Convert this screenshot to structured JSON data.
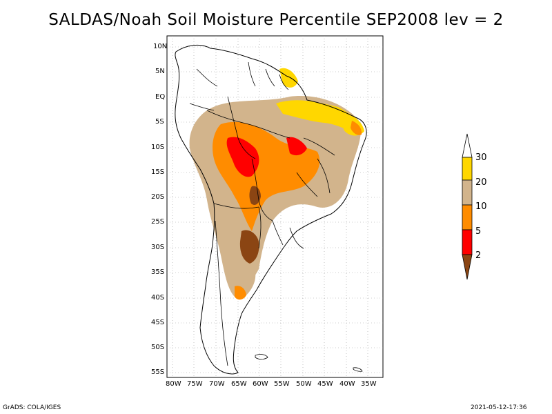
{
  "title": "SALDAS/Noah Soil Moisture Percentile SEP2008 lev = 2",
  "lat_labels": [
    "10N",
    "5N",
    "EQ",
    "5S",
    "10S",
    "15S",
    "20S",
    "25S",
    "30S",
    "35S",
    "40S",
    "45S",
    "50S",
    "55S"
  ],
  "lon_labels": [
    "80W",
    "75W",
    "70W",
    "65W",
    "60W",
    "55W",
    "50W",
    "45W",
    "40W",
    "35W"
  ],
  "colorbar": {
    "labels": [
      "30",
      "20",
      "10",
      "5",
      "2"
    ],
    "colors": [
      "#ffffff",
      "#ffd700",
      "#d2b48c",
      "#ff8c00",
      "#ff0000",
      "#8b4513"
    ]
  },
  "footer": {
    "left": "GrADS: COLA/IGES",
    "right": "2021-05-12-17:36"
  }
}
